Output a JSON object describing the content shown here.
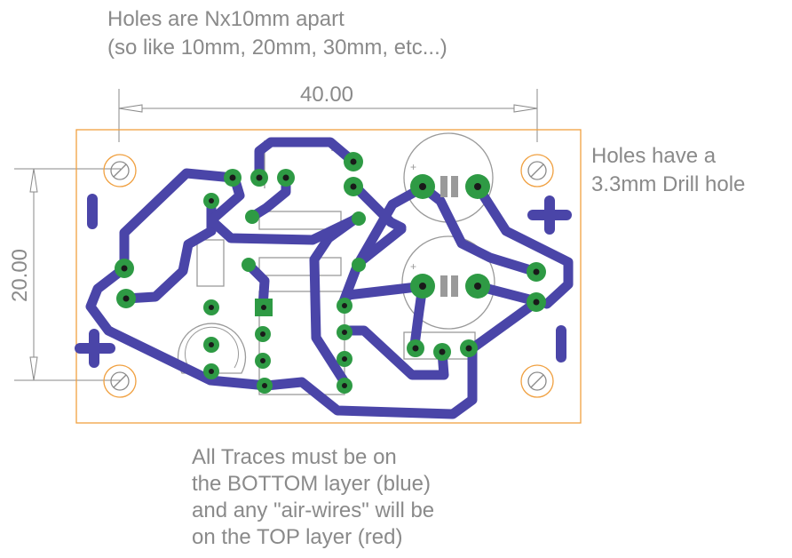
{
  "notes": {
    "top": [
      "Holes are Nx10mm apart",
      "(so like 10mm, 20mm, 30mm, etc...)"
    ],
    "right": [
      "Holes have a",
      "3.3mm Drill hole"
    ],
    "bottom": [
      "All Traces must be on",
      "the BOTTOM layer (blue)",
      "and any \"air-wires\" will be",
      "on the TOP layer (red)"
    ]
  },
  "dimensions": {
    "width": "40.00",
    "height": "20.00"
  },
  "colors": {
    "board_outline": "#f0a040",
    "trace": "#4a45a8",
    "pad": "#2e9a44",
    "drill": "#1a1a1a",
    "annotation": "#8a8a8a",
    "silk": "#999999"
  }
}
